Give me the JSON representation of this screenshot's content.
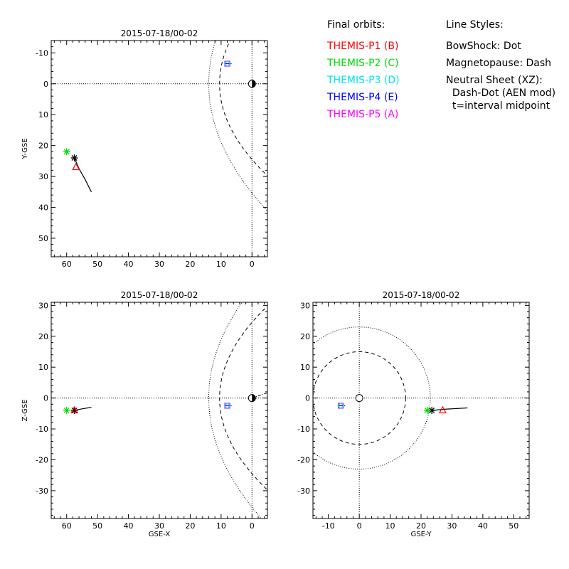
{
  "chart_data": [
    {
      "type": "scatter",
      "panel": "xy",
      "title": "2015-07-18/00-02",
      "xlabel": "",
      "ylabel": "Y-GSE",
      "xlim": [
        65,
        -5
      ],
      "ylim": [
        56,
        -14
      ],
      "xticks": [
        60,
        50,
        40,
        30,
        20,
        10,
        0
      ],
      "yticks": [
        -10,
        0,
        10,
        20,
        30,
        40,
        50
      ],
      "orbit": [
        [
          57.5,
          24
        ],
        [
          56,
          27.5
        ],
        [
          54,
          31
        ],
        [
          52,
          35
        ]
      ],
      "stars": [
        {
          "name": "black",
          "x": 57.5,
          "y": 24
        },
        {
          "name": "green",
          "x": 60,
          "y": 22
        }
      ],
      "triangles": [
        {
          "x": 57,
          "y": 27
        }
      ],
      "probe_cluster": [
        {
          "x": 8,
          "y": -6.5
        }
      ],
      "earth": {
        "x": 0,
        "y": 0
      }
    },
    {
      "type": "scatter",
      "panel": "xz",
      "title": "2015-07-18/00-02",
      "xlabel": "GSE-X",
      "ylabel": "Z-GSE",
      "xlim": [
        65,
        -5
      ],
      "ylim": [
        -39,
        31
      ],
      "xticks": [
        60,
        50,
        40,
        30,
        20,
        10,
        0
      ],
      "yticks": [
        -30,
        -20,
        -10,
        0,
        10,
        20,
        30
      ],
      "orbit": [
        [
          57.5,
          -4
        ],
        [
          55,
          -3.5
        ],
        [
          52,
          -3
        ]
      ],
      "stars": [
        {
          "name": "black",
          "x": 57.5,
          "y": -4
        },
        {
          "name": "green",
          "x": 60,
          "y": -4
        }
      ],
      "triangles": [
        {
          "x": 57.5,
          "y": -4
        }
      ],
      "probe_cluster": [
        {
          "x": 8,
          "y": -2.5
        }
      ],
      "earth": {
        "x": 0,
        "y": 0
      }
    },
    {
      "type": "scatter",
      "panel": "yz",
      "title": "2015-07-18/00-02",
      "xlabel": "GSE-Y",
      "ylabel": "",
      "xlim": [
        -15,
        55
      ],
      "ylim": [
        -39,
        31
      ],
      "xticks": [
        -10,
        0,
        10,
        20,
        30,
        40,
        50
      ],
      "yticks": [
        -30,
        -20,
        -10,
        0,
        10,
        20,
        30
      ],
      "orbit": [
        [
          23.5,
          -4
        ],
        [
          28,
          -3.6
        ],
        [
          35,
          -3.2
        ]
      ],
      "stars": [
        {
          "name": "black",
          "x": 23.5,
          "y": -4
        },
        {
          "name": "green",
          "x": 22,
          "y": -4
        }
      ],
      "triangles": [
        {
          "x": 27,
          "y": -4
        }
      ],
      "probe_cluster": [
        {
          "x": -6,
          "y": -2.5
        }
      ],
      "earth": {
        "x": 0,
        "y": 0
      },
      "bowshock_radius": 23,
      "magnetopause_radius": 15
    }
  ],
  "legend": {
    "orbits_title": "Final orbits:",
    "probes": [
      {
        "label": "THEMIS-P1 (B)",
        "color": "#ff0000"
      },
      {
        "label": "THEMIS-P2 (C)",
        "color": "#00dd00"
      },
      {
        "label": "THEMIS-P3 (D)",
        "color": "#00e5e5"
      },
      {
        "label": "THEMIS-P4 (E)",
        "color": "#0000ff"
      },
      {
        "label": "THEMIS-P5 (A)",
        "color": "#ff00ff"
      }
    ],
    "styles_title": "Line Styles:",
    "styles": [
      "BowShock: Dot",
      "Magnetopause: Dash",
      "Neutral Sheet (XZ):",
      "  Dash-Dot (AEN mod)",
      "  t=interval midpoint"
    ]
  }
}
